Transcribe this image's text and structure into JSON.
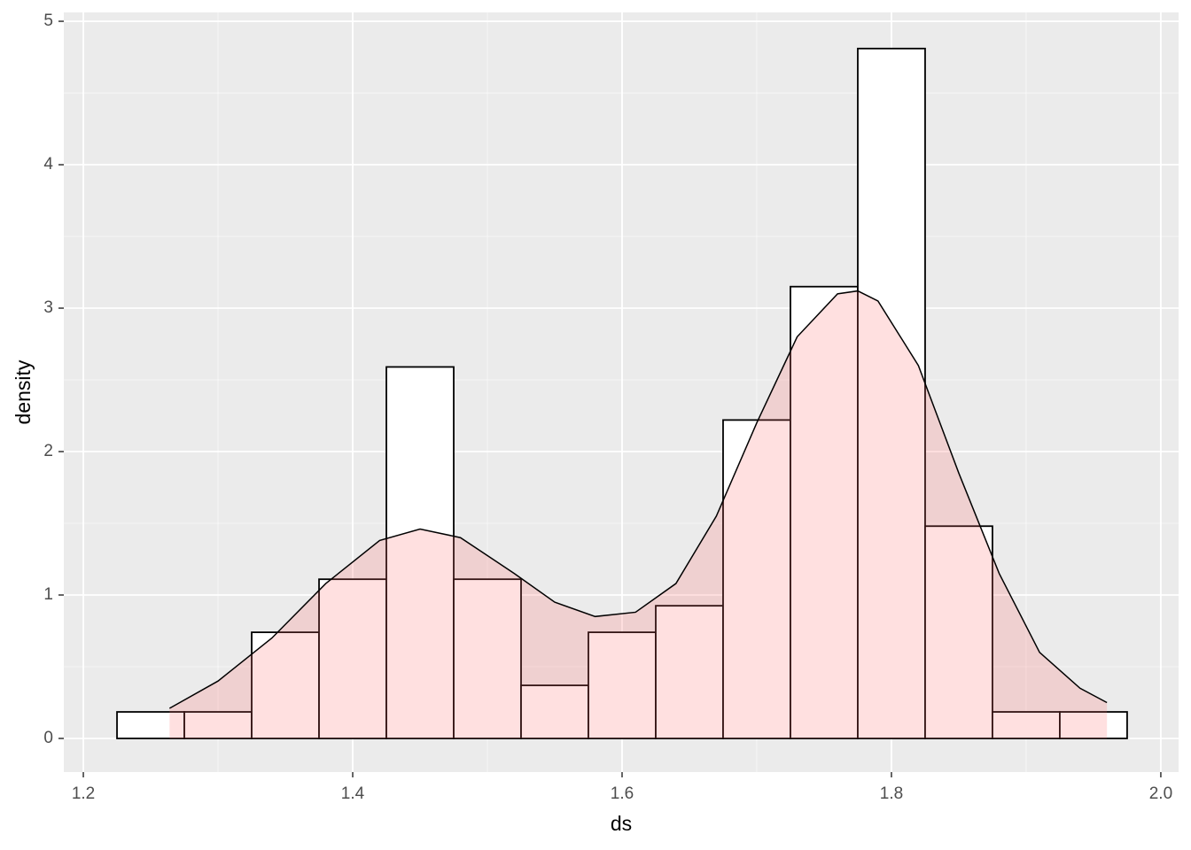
{
  "chart_data": {
    "type": "histogram",
    "xlabel": "ds",
    "ylabel": "density",
    "bins": [
      1.225,
      1.275,
      1.325,
      1.375,
      1.425,
      1.475,
      1.525,
      1.575,
      1.625,
      1.675,
      1.725,
      1.775,
      1.825,
      1.875,
      1.925,
      1.975
    ],
    "values": [
      0.185,
      0.185,
      0.74,
      1.11,
      2.59,
      1.11,
      0.37,
      0.74,
      0.925,
      2.22,
      3.15,
      4.81,
      1.48,
      0.185,
      0.185
    ],
    "color": "#ffffff",
    "edgecolor": "#000000",
    "density": {
      "color": "#ff6666",
      "opacity": 0.2,
      "x": [
        1.264,
        1.3,
        1.34,
        1.38,
        1.42,
        1.45,
        1.48,
        1.52,
        1.55,
        1.58,
        1.61,
        1.64,
        1.67,
        1.7,
        1.73,
        1.76,
        1.775,
        1.79,
        1.82,
        1.85,
        1.88,
        1.91,
        1.94,
        1.96
      ],
      "y": [
        0.21,
        0.4,
        0.7,
        1.08,
        1.38,
        1.46,
        1.4,
        1.15,
        0.95,
        0.85,
        0.88,
        1.08,
        1.55,
        2.2,
        2.8,
        3.1,
        3.12,
        3.05,
        2.6,
        1.85,
        1.15,
        0.6,
        0.35,
        0.25
      ]
    },
    "xlim": [
      1.1855,
      2.0132
    ],
    "ylim": [
      -0.2346,
      5.062
    ],
    "xticks": [
      {
        "value": 1.2,
        "label": "1.2"
      },
      {
        "value": 1.4,
        "label": "1.4"
      },
      {
        "value": 1.6,
        "label": "1.6"
      },
      {
        "value": 1.8,
        "label": "1.8"
      },
      {
        "value": 2.0,
        "label": "2.0"
      }
    ],
    "yticks": [
      0,
      1,
      2,
      3,
      4,
      5
    ],
    "xminor": [
      1.3,
      1.5,
      1.7,
      1.9
    ],
    "yminor": [
      0.5,
      1.5,
      2.5,
      3.5,
      4.5
    ],
    "grid": true
  }
}
